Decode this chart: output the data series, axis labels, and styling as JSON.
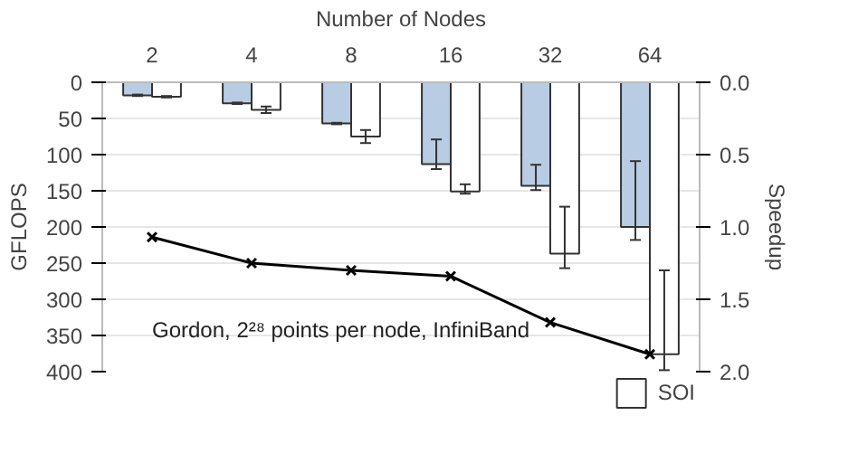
{
  "chart_data": {
    "type": "bar",
    "xlabel": "Number of Nodes",
    "ylabel": "GFLOPS",
    "y2label": "Speedup",
    "categories": [
      "2",
      "4",
      "8",
      "16",
      "32",
      "64"
    ],
    "series": [
      {
        "color": "#b8cce4",
        "values": [
          18,
          29,
          57,
          113,
          143,
          200
        ],
        "errors": [
          1,
          1,
          1,
          [
            79,
            120
          ],
          [
            114,
            149
          ],
          [
            109,
            218
          ]
        ]
      },
      {
        "name": "SOI",
        "color": "#ffffff",
        "values": [
          20,
          38,
          75,
          151,
          237,
          376
        ],
        "errors": [
          1,
          4.5,
          9,
          [
            141,
            154
          ],
          [
            172,
            257
          ],
          [
            260,
            398
          ]
        ]
      },
      {
        "type": "line",
        "axis": "y2",
        "color": "#000000",
        "marker": "cross",
        "line_style": "solid",
        "values": [
          1.07,
          1.25,
          1.3,
          1.34,
          1.66,
          1.88
        ]
      }
    ],
    "ylim": [
      400,
      0
    ],
    "yticks": [
      0,
      50,
      100,
      150,
      200,
      250,
      300,
      350,
      400
    ],
    "y2lim": [
      2.0,
      0.0
    ],
    "y2ticks": [
      {
        "value": 0,
        "label": "0.0"
      },
      {
        "value": 0.5,
        "label": "0.5"
      },
      {
        "value": 1,
        "label": "1.0"
      },
      {
        "value": 1.5,
        "label": "1.5"
      },
      {
        "value": 2,
        "label": "2.0"
      }
    ],
    "grid": "y",
    "legend": "bottom",
    "annotations": [
      "Gordon, 2²⁸ points per node, InfiniBand"
    ]
  }
}
